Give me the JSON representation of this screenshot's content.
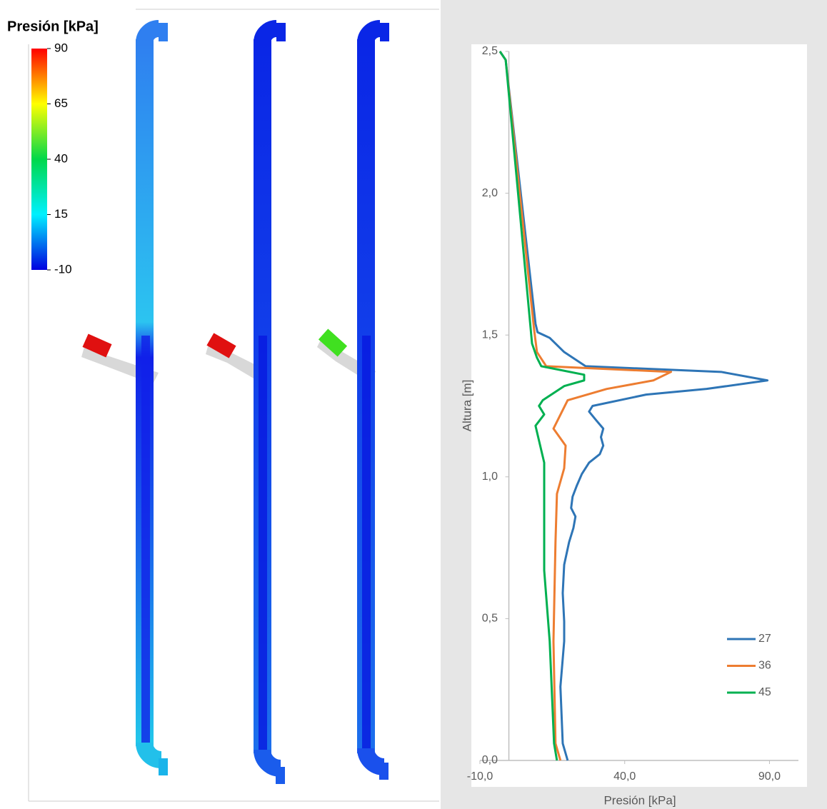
{
  "colorbar": {
    "title": "Presión [kPa]",
    "ticks": [
      90,
      65,
      40,
      15,
      -10
    ],
    "lim": [
      -10,
      90
    ]
  },
  "chart_data": {
    "type": "line",
    "xlabel": "Presión [kPa]",
    "ylabel": "Altura [m]",
    "xlim": [
      -10,
      100
    ],
    "ylim": [
      0,
      2.5
    ],
    "xticks": [
      {
        "value": -10,
        "label": "-10,0"
      },
      {
        "value": 40,
        "label": "40,0"
      },
      {
        "value": 90,
        "label": "90,0"
      }
    ],
    "yticks": [
      {
        "value": 0,
        "label": "0,0"
      },
      {
        "value": 0.5,
        "label": "0,5"
      },
      {
        "value": 1,
        "label": "1,0"
      },
      {
        "value": 1.5,
        "label": "1,5"
      },
      {
        "value": 2,
        "label": "2,0"
      },
      {
        "value": 2.5,
        "label": "2,5"
      }
    ],
    "legend": "lower right",
    "series": [
      {
        "name": "27",
        "color": "#2e75b6",
        "x": [
          -3.1,
          -1.1,
          9.2,
          9.9,
          14.1,
          19.1,
          26.5,
          73.3,
          89.3,
          68.3,
          47.4,
          28.9,
          27.7,
          30.1,
          32.6,
          31.8,
          32.6,
          31.4,
          27.7,
          25.2,
          23.5,
          22.0,
          21.5,
          23.0,
          22.3,
          20.8,
          19.1,
          18.6,
          19.1,
          19.1,
          17.8,
          18.6,
          20.3
        ],
        "y": [
          2.5,
          2.47,
          1.54,
          1.51,
          1.49,
          1.44,
          1.39,
          1.37,
          1.34,
          1.31,
          1.29,
          1.25,
          1.23,
          1.2,
          1.17,
          1.14,
          1.11,
          1.08,
          1.05,
          1.01,
          0.97,
          0.93,
          0.89,
          0.86,
          0.82,
          0.77,
          0.69,
          0.59,
          0.49,
          0.42,
          0.26,
          0.06,
          0
        ]
      },
      {
        "name": "36",
        "color": "#ed7d31",
        "x": [
          -3.1,
          -1.1,
          8.7,
          9.7,
          12.9,
          56.0,
          49.9,
          33.8,
          20.3,
          15.4,
          19.6,
          19.1,
          16.6,
          16.1,
          15.4,
          16.1,
          17.8
        ],
        "y": [
          2.5,
          2.47,
          1.52,
          1.44,
          1.39,
          1.37,
          1.34,
          1.31,
          1.27,
          1.17,
          1.11,
          1.03,
          0.94,
          0.77,
          0.42,
          0.06,
          0
        ]
      },
      {
        "name": "45",
        "color": "#00b050",
        "x": [
          -3.1,
          -1.1,
          8.0,
          9.7,
          11.2,
          26.0,
          26.0,
          19.1,
          11.7,
          10.4,
          12.2,
          9.2,
          12.2,
          12.2,
          14.1,
          15.6,
          16.6
        ],
        "y": [
          2.5,
          2.47,
          1.47,
          1.42,
          1.39,
          1.36,
          1.34,
          1.32,
          1.27,
          1.25,
          1.22,
          1.18,
          1.05,
          0.67,
          0.42,
          0.06,
          0
        ]
      }
    ]
  }
}
